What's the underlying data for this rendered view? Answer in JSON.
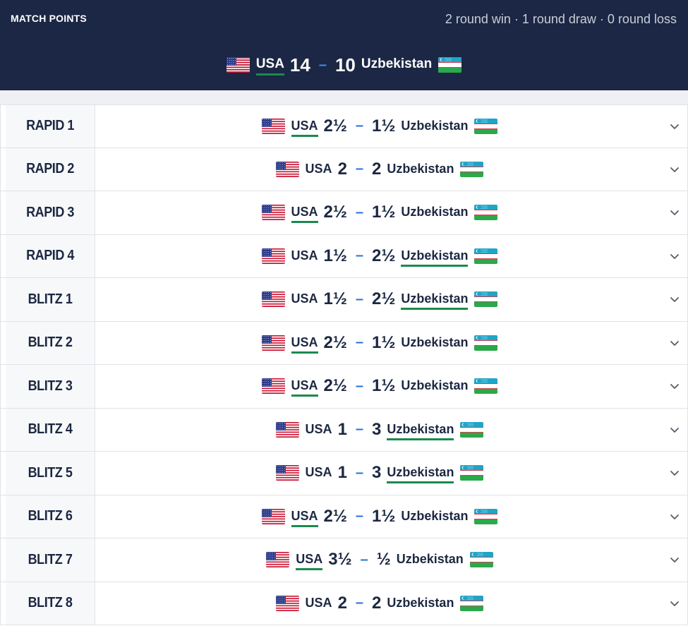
{
  "header": {
    "title": "MATCH POINTS",
    "record": "2 round win · 1 round draw · 0 round loss",
    "summary": {
      "home": "USA",
      "home_score": "14",
      "separator": "–",
      "away_score": "10",
      "away": "Uzbekistan",
      "winner": "home"
    }
  },
  "rounds": [
    {
      "label": "RAPID 1",
      "home": "USA",
      "home_score": "2½",
      "away_score": "1½",
      "away": "Uzbekistan",
      "winner": "home"
    },
    {
      "label": "RAPID 2",
      "home": "USA",
      "home_score": "2",
      "away_score": "2",
      "away": "Uzbekistan",
      "winner": "none"
    },
    {
      "label": "RAPID 3",
      "home": "USA",
      "home_score": "2½",
      "away_score": "1½",
      "away": "Uzbekistan",
      "winner": "home"
    },
    {
      "label": "RAPID 4",
      "home": "USA",
      "home_score": "1½",
      "away_score": "2½",
      "away": "Uzbekistan",
      "winner": "away"
    },
    {
      "label": "BLITZ 1",
      "home": "USA",
      "home_score": "1½",
      "away_score": "2½",
      "away": "Uzbekistan",
      "winner": "away"
    },
    {
      "label": "BLITZ 2",
      "home": "USA",
      "home_score": "2½",
      "away_score": "1½",
      "away": "Uzbekistan",
      "winner": "home"
    },
    {
      "label": "BLITZ 3",
      "home": "USA",
      "home_score": "2½",
      "away_score": "1½",
      "away": "Uzbekistan",
      "winner": "home"
    },
    {
      "label": "BLITZ 4",
      "home": "USA",
      "home_score": "1",
      "away_score": "3",
      "away": "Uzbekistan",
      "winner": "away"
    },
    {
      "label": "BLITZ 5",
      "home": "USA",
      "home_score": "1",
      "away_score": "3",
      "away": "Uzbekistan",
      "winner": "away"
    },
    {
      "label": "BLITZ 6",
      "home": "USA",
      "home_score": "2½",
      "away_score": "1½",
      "away": "Uzbekistan",
      "winner": "home"
    },
    {
      "label": "BLITZ 7",
      "home": "USA",
      "home_score": "3½",
      "away_score": "½",
      "away": "Uzbekistan",
      "winner": "home"
    },
    {
      "label": "BLITZ 8",
      "home": "USA",
      "home_score": "2",
      "away_score": "2",
      "away": "Uzbekistan",
      "winner": "none"
    }
  ],
  "separator": "–",
  "icons": {
    "home_flag": "usa-flag-icon",
    "away_flag": "uzbekistan-flag-icon",
    "expand": "chevron-down-icon"
  },
  "colors": {
    "header_bg": "#1b2744",
    "winner_underline": "#1a8a4e",
    "dash": "#2a6fd6"
  }
}
